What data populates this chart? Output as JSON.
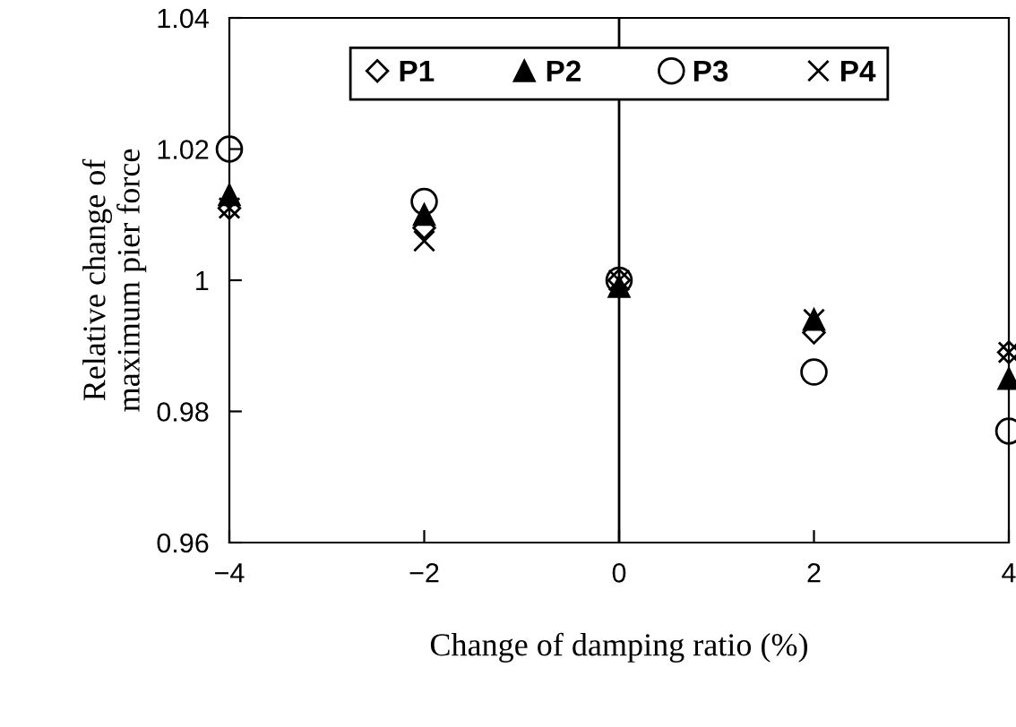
{
  "chart_data": {
    "type": "scatter",
    "xlabel": "Change of damping ratio (%)",
    "ylabel": "Relative change of\nmaximum pier force",
    "x": [
      -4,
      -2,
      0,
      2,
      4
    ],
    "series": [
      {
        "name": "P1",
        "color": "#000000",
        "marker": "diamond",
        "values": [
          1.011,
          1.008,
          1.0,
          0.992,
          0.989
        ]
      },
      {
        "name": "P2",
        "color": "#000000",
        "marker": "triangle",
        "values": [
          1.013,
          1.01,
          0.999,
          0.994,
          0.985
        ]
      },
      {
        "name": "P3",
        "color": "#000000",
        "marker": "circle",
        "values": [
          1.02,
          1.012,
          1.0,
          0.986,
          0.977
        ]
      },
      {
        "name": "P4",
        "color": "#000000",
        "marker": "cross",
        "values": [
          1.011,
          1.006,
          1.0,
          0.994,
          0.989
        ]
      }
    ],
    "xlim": [
      -4,
      4
    ],
    "xticks": [
      {
        "value": -4,
        "label": "−4"
      },
      {
        "value": -2,
        "label": "−2"
      },
      0,
      2,
      4
    ],
    "ylim": [
      0.96,
      1.04
    ],
    "yticks": [
      0.96,
      0.98,
      1,
      1.02,
      1.04
    ],
    "ref_lines": [
      {
        "axis": "x",
        "value": 0,
        "color": "#000000"
      }
    ],
    "grid": false,
    "legend": "top"
  }
}
